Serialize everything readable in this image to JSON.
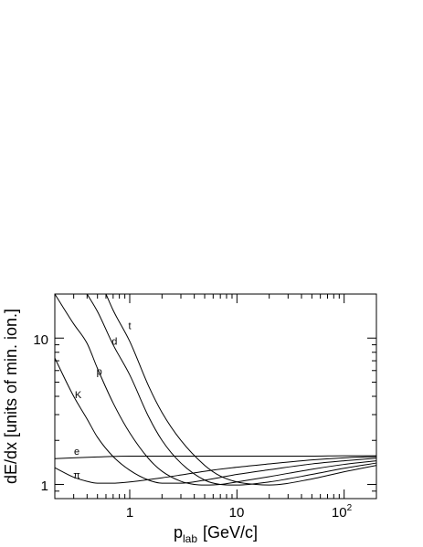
{
  "chart_data": {
    "type": "line",
    "title": "",
    "xlabel": "p",
    "xlabel_subscript": "lab",
    "xlabel_unit": "[GeV/c]",
    "ylabel": "dE/dx [units of min. ion.]",
    "x_scale": "log",
    "y_scale": "log",
    "xlim": [
      0.2,
      200
    ],
    "ylim": [
      0.8,
      20
    ],
    "grid": false,
    "legend": "none",
    "x_major_ticks": [
      1,
      10,
      100
    ],
    "x_tick_labels": [
      "1",
      "10",
      "10",
      "2"
    ],
    "y_major_ticks": [
      1,
      10
    ],
    "y_tick_labels": [
      "1",
      "10"
    ],
    "series": [
      {
        "name": "e",
        "x": [
          0.2,
          0.5,
          1,
          2,
          5,
          10,
          20,
          50,
          100,
          200
        ],
        "values": [
          1.5,
          1.54,
          1.56,
          1.56,
          1.56,
          1.56,
          1.56,
          1.56,
          1.57,
          1.57
        ]
      },
      {
        "name": "π",
        "x": [
          0.2,
          0.3,
          0.4,
          0.5,
          0.7,
          1,
          2,
          3,
          5,
          10,
          20,
          50,
          100,
          200
        ],
        "values": [
          1.3,
          1.12,
          1.05,
          1.02,
          1.02,
          1.04,
          1.11,
          1.16,
          1.23,
          1.31,
          1.38,
          1.47,
          1.52,
          1.55
        ]
      },
      {
        "name": "K",
        "x": [
          0.2,
          0.3,
          0.4,
          0.5,
          0.7,
          1,
          1.5,
          2,
          3,
          5,
          10,
          20,
          50,
          100,
          200
        ],
        "values": [
          7.3,
          4.0,
          2.8,
          2.1,
          1.55,
          1.25,
          1.07,
          1.02,
          1.02,
          1.07,
          1.17,
          1.26,
          1.38,
          1.45,
          1.51
        ]
      },
      {
        "name": "p",
        "x": [
          0.2,
          0.3,
          0.4,
          0.5,
          0.7,
          1,
          1.5,
          2,
          3,
          4,
          5,
          7,
          10,
          20,
          50,
          100,
          200
        ],
        "values": [
          20,
          12.5,
          9.2,
          6.2,
          3.6,
          2.25,
          1.5,
          1.23,
          1.05,
          1.0,
          0.99,
          1.0,
          1.04,
          1.13,
          1.27,
          1.37,
          1.45
        ]
      },
      {
        "name": "d",
        "x": [
          0.4,
          0.5,
          0.7,
          1,
          1.5,
          2,
          3,
          5,
          7,
          10,
          20,
          50,
          100,
          200
        ],
        "values": [
          20,
          15.2,
          9.0,
          5.6,
          2.9,
          2.0,
          1.4,
          1.07,
          1.0,
          0.99,
          1.04,
          1.17,
          1.29,
          1.4
        ]
      },
      {
        "name": "t",
        "x": [
          0.6,
          0.7,
          1,
          1.5,
          2,
          3,
          5,
          7,
          10,
          15,
          20,
          50,
          100,
          200
        ],
        "values": [
          20,
          15.5,
          9.5,
          4.7,
          3.1,
          2.0,
          1.35,
          1.14,
          1.04,
          1.0,
          0.99,
          1.09,
          1.22,
          1.35
        ]
      }
    ],
    "curve_labels": [
      {
        "text": "t",
        "x": 1.0,
        "y": 11.5
      },
      {
        "text": "d",
        "x": 0.72,
        "y": 9.0
      },
      {
        "text": "p",
        "x": 0.52,
        "y": 5.6
      },
      {
        "text": "K",
        "x": 0.33,
        "y": 3.9
      },
      {
        "text": "e",
        "x": 0.32,
        "y": 1.6
      },
      {
        "text": "π",
        "x": 0.32,
        "y": 1.1
      }
    ]
  }
}
